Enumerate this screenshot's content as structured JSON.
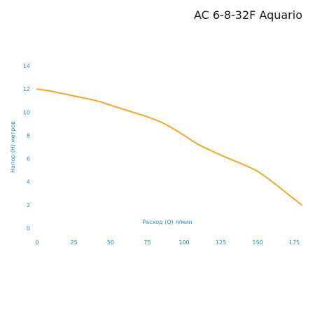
{
  "title": "AC 6-8-32F Aquario",
  "colors": {
    "axis_text": "#1f8ac6",
    "curve": "#f5a623",
    "grid": "#d7e6f2"
  },
  "chart_data": {
    "type": "line",
    "title": "AC 6-8-32F Aquario",
    "xlabel": "Расход (Q) л/мин",
    "ylabel": "Напор (H) метров",
    "xlim": [
      0,
      180
    ],
    "ylim": [
      0,
      14
    ],
    "x_ticks": [
      0,
      25,
      50,
      75,
      100,
      125,
      150,
      175
    ],
    "y_ticks": [
      0,
      2,
      4,
      6,
      8,
      10,
      12,
      14
    ],
    "grid": false,
    "series": [
      {
        "x": [
          0,
          10,
          25,
          40,
          50,
          60,
          75,
          85,
          95,
          100,
          110,
          125,
          140,
          150,
          160,
          170,
          180
        ],
        "y": [
          12.0,
          11.8,
          11.4,
          11.0,
          10.6,
          10.2,
          9.6,
          9.1,
          8.4,
          8.0,
          7.2,
          6.3,
          5.5,
          4.9,
          4.0,
          3.0,
          2.0
        ]
      }
    ]
  }
}
